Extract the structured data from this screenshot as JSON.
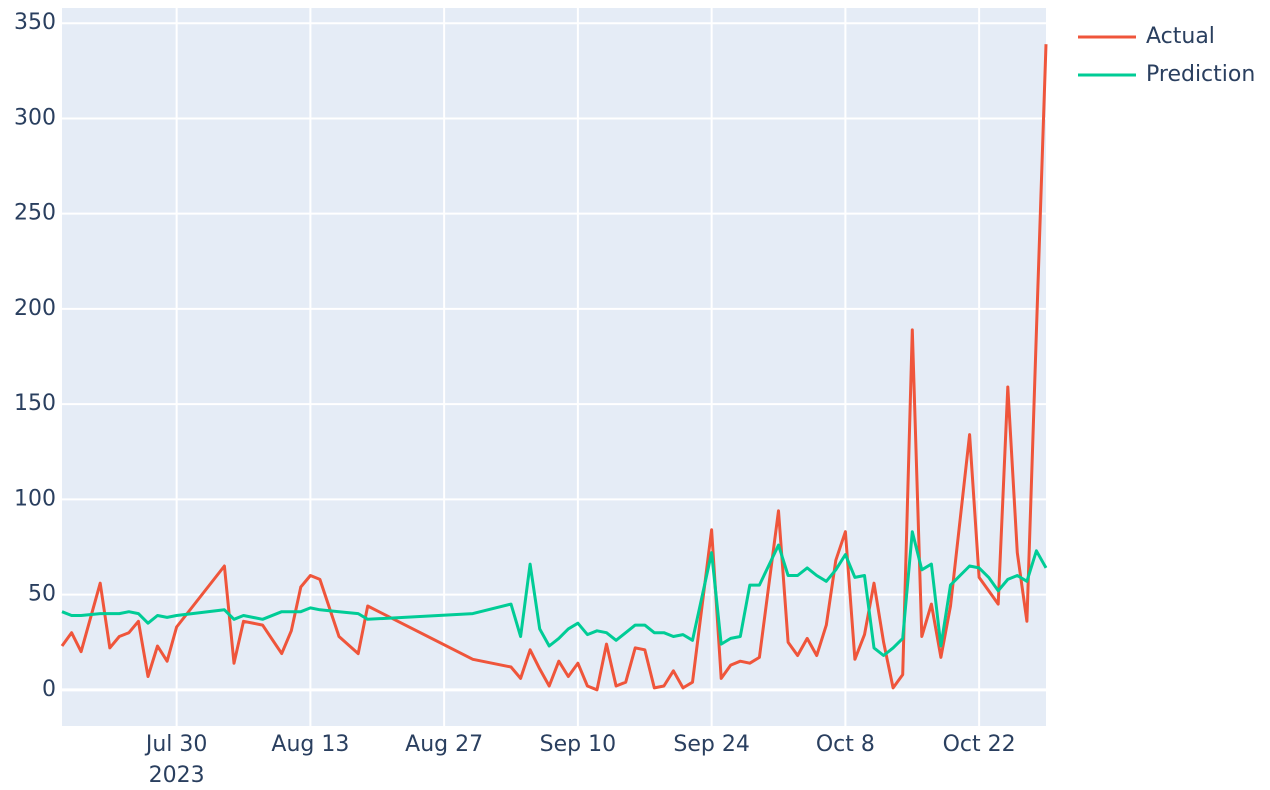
{
  "chart_data": {
    "type": "line",
    "x": [
      "2023-07-18",
      "2023-07-19",
      "2023-07-20",
      "2023-07-22",
      "2023-07-23",
      "2023-07-24",
      "2023-07-25",
      "2023-07-26",
      "2023-07-27",
      "2023-07-28",
      "2023-07-29",
      "2023-07-30",
      "2023-08-04",
      "2023-08-05",
      "2023-08-06",
      "2023-08-08",
      "2023-08-10",
      "2023-08-11",
      "2023-08-12",
      "2023-08-13",
      "2023-08-14",
      "2023-08-16",
      "2023-08-18",
      "2023-08-19",
      "2023-08-30",
      "2023-09-03",
      "2023-09-04",
      "2023-09-05",
      "2023-09-06",
      "2023-09-07",
      "2023-09-08",
      "2023-09-09",
      "2023-09-10",
      "2023-09-11",
      "2023-09-12",
      "2023-09-13",
      "2023-09-14",
      "2023-09-15",
      "2023-09-16",
      "2023-09-17",
      "2023-09-18",
      "2023-09-19",
      "2023-09-20",
      "2023-09-21",
      "2023-09-22",
      "2023-09-24",
      "2023-09-25",
      "2023-09-26",
      "2023-09-27",
      "2023-09-28",
      "2023-09-29",
      "2023-10-01",
      "2023-10-02",
      "2023-10-03",
      "2023-10-04",
      "2023-10-05",
      "2023-10-06",
      "2023-10-07",
      "2023-10-08",
      "2023-10-09",
      "2023-10-10",
      "2023-10-11",
      "2023-10-12",
      "2023-10-13",
      "2023-10-14",
      "2023-10-15",
      "2023-10-16",
      "2023-10-17",
      "2023-10-18",
      "2023-10-19",
      "2023-10-21",
      "2023-10-22",
      "2023-10-23",
      "2023-10-24",
      "2023-10-25",
      "2023-10-26",
      "2023-10-27",
      "2023-10-28",
      "2023-10-29"
    ],
    "series": [
      {
        "name": "Actual",
        "color": "#ef553b",
        "values": [
          23,
          30,
          20,
          56,
          22,
          28,
          30,
          36,
          7,
          23,
          15,
          33,
          65,
          14,
          36,
          34,
          19,
          31,
          54,
          60,
          58,
          28,
          19,
          44,
          16,
          12,
          6,
          21,
          11,
          2,
          15,
          7,
          14,
          2,
          0,
          24,
          2,
          4,
          22,
          21,
          1,
          2,
          10,
          1,
          4,
          84,
          6,
          13,
          15,
          14,
          17,
          94,
          25,
          18,
          27,
          18,
          34,
          68,
          83,
          16,
          29,
          56,
          25,
          1,
          8,
          189,
          28,
          45,
          17,
          44,
          134,
          59,
          52,
          45,
          159,
          72,
          36,
          188,
          339
        ]
      },
      {
        "name": "Prediction",
        "color": "#00cc96",
        "values": [
          41,
          39,
          39,
          40,
          40,
          40,
          41,
          40,
          35,
          39,
          38,
          39,
          42,
          37,
          39,
          37,
          41,
          41,
          41,
          43,
          42,
          41,
          40,
          37,
          40,
          45,
          28,
          66,
          32,
          23,
          27,
          32,
          35,
          29,
          31,
          30,
          26,
          30,
          34,
          34,
          30,
          30,
          28,
          29,
          26,
          72,
          24,
          27,
          28,
          55,
          55,
          76,
          60,
          60,
          64,
          60,
          57,
          63,
          71,
          59,
          60,
          22,
          18,
          22,
          27,
          83,
          63,
          66,
          23,
          55,
          65,
          64,
          59,
          52,
          58,
          60,
          57,
          73,
          64
        ]
      }
    ],
    "xlim": [
      "2023-07-18",
      "2023-10-29"
    ],
    "xticks": [
      {
        "value": "2023-07-30",
        "label": "Jul 30\n2023"
      },
      {
        "value": "2023-08-13",
        "label": "Aug 13"
      },
      {
        "value": "2023-08-27",
        "label": "Aug 27"
      },
      {
        "value": "2023-09-10",
        "label": "Sep 10"
      },
      {
        "value": "2023-09-24",
        "label": "Sep 24"
      },
      {
        "value": "2023-10-08",
        "label": "Oct 8"
      },
      {
        "value": "2023-10-22",
        "label": "Oct 22"
      }
    ],
    "ylim": [
      -19,
      358
    ],
    "yticks": [
      0,
      50,
      100,
      150,
      200,
      250,
      300,
      350
    ],
    "grid": true,
    "legend": "right"
  }
}
